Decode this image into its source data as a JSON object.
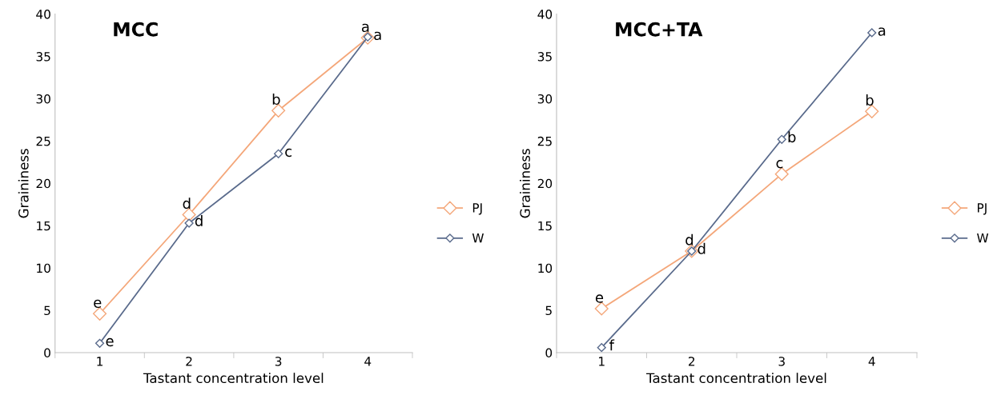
{
  "chart_data": [
    {
      "type": "line",
      "title": "MCC",
      "xlabel": "Tastant concentration level",
      "ylabel": "Graininess",
      "categories": [
        "1",
        "2",
        "3",
        "4"
      ],
      "series": [
        {
          "name": "PJ",
          "color": "#f4a77a",
          "values": [
            4.6,
            16.3,
            28.6,
            37.2
          ]
        },
        {
          "name": "W",
          "color": "#5a6b8c",
          "values": [
            1.1,
            15.3,
            23.5,
            37.3
          ]
        }
      ],
      "ylim": [
        0,
        40
      ],
      "yticks": [
        0,
        5,
        10,
        15,
        20,
        25,
        30,
        35,
        40
      ],
      "marker": "diamond",
      "line_style": "solid",
      "legend": "right",
      "grid": false,
      "annotations": [
        {
          "text": "e",
          "x": "1",
          "y": 4.6
        },
        {
          "text": "e",
          "x": "1",
          "y": 1.1
        },
        {
          "text": "d",
          "x": "2",
          "y": 16.3
        },
        {
          "text": "d",
          "x": "2",
          "y": 15.3
        },
        {
          "text": "b",
          "x": "3",
          "y": 28.6
        },
        {
          "text": "c",
          "x": "3",
          "y": 23.5
        },
        {
          "text": "a",
          "x": "4",
          "y": 37.2
        },
        {
          "text": "a",
          "x": "4",
          "y": 37.3
        }
      ]
    },
    {
      "type": "line",
      "title": "MCC+TA",
      "xlabel": "Tastant concentration level",
      "ylabel": "Graininess",
      "categories": [
        "1",
        "2",
        "3",
        "4"
      ],
      "series": [
        {
          "name": "PJ",
          "color": "#f4a77a",
          "values": [
            5.2,
            12.0,
            21.1,
            28.5
          ]
        },
        {
          "name": "W",
          "color": "#5a6b8c",
          "values": [
            0.6,
            12.0,
            25.2,
            37.8
          ]
        }
      ],
      "ylim": [
        0,
        40
      ],
      "yticks": [
        0,
        5,
        10,
        15,
        20,
        25,
        30,
        35,
        40
      ],
      "marker": "diamond",
      "line_style": "solid",
      "legend": "right",
      "grid": false,
      "annotations": [
        {
          "text": "e",
          "x": "1",
          "y": 5.2
        },
        {
          "text": "f",
          "x": "1",
          "y": 0.6
        },
        {
          "text": "d",
          "x": "2",
          "y": 12.0
        },
        {
          "text": "d",
          "x": "2",
          "y": 12.0
        },
        {
          "text": "c",
          "x": "3",
          "y": 21.1
        },
        {
          "text": "b",
          "x": "3",
          "y": 25.2
        },
        {
          "text": "b",
          "x": "4",
          "y": 28.5
        },
        {
          "text": "a",
          "x": "4",
          "y": 37.8
        }
      ]
    }
  ]
}
